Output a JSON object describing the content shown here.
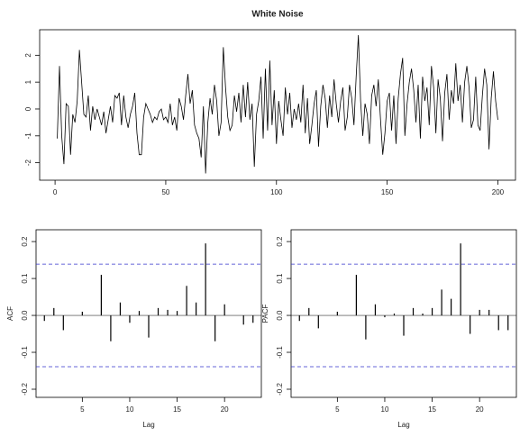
{
  "chart_data": [
    {
      "type": "line",
      "title": "White Noise",
      "color": "#000000",
      "x": [
        1,
        2,
        3,
        4,
        5,
        6,
        7,
        8,
        9,
        10,
        11,
        12,
        13,
        14,
        15,
        16,
        17,
        18,
        19,
        20,
        21,
        22,
        23,
        24,
        25,
        26,
        27,
        28,
        29,
        30,
        31,
        32,
        33,
        34,
        35,
        36,
        37,
        38,
        39,
        40,
        41,
        42,
        43,
        44,
        45,
        46,
        47,
        48,
        49,
        50,
        51,
        52,
        53,
        54,
        55,
        56,
        57,
        58,
        59,
        60,
        61,
        62,
        63,
        64,
        65,
        66,
        67,
        68,
        69,
        70,
        71,
        72,
        73,
        74,
        75,
        76,
        77,
        78,
        79,
        80,
        81,
        82,
        83,
        84,
        85,
        86,
        87,
        88,
        89,
        90,
        91,
        92,
        93,
        94,
        95,
        96,
        97,
        98,
        99,
        100,
        101,
        102,
        103,
        104,
        105,
        106,
        107,
        108,
        109,
        110,
        111,
        112,
        113,
        114,
        115,
        116,
        117,
        118,
        119,
        120,
        121,
        122,
        123,
        124,
        125,
        126,
        127,
        128,
        129,
        130,
        131,
        132,
        133,
        134,
        135,
        136,
        137,
        138,
        139,
        140,
        141,
        142,
        143,
        144,
        145,
        146,
        147,
        148,
        149,
        150,
        151,
        152,
        153,
        154,
        155,
        156,
        157,
        158,
        159,
        160,
        161,
        162,
        163,
        164,
        165,
        166,
        167,
        168,
        169,
        170,
        171,
        172,
        173,
        174,
        175,
        176,
        177,
        178,
        179,
        180,
        181,
        182,
        183,
        184,
        185,
        186,
        187,
        188,
        189,
        190,
        191,
        192,
        193,
        194,
        195,
        196,
        197,
        198,
        199,
        200
      ],
      "values": [
        -1.1,
        1.6,
        -1.0,
        -2.05,
        0.2,
        0.1,
        -1.7,
        -0.2,
        -0.5,
        0.3,
        2.2,
        1.0,
        -0.2,
        -0.3,
        0.5,
        -0.8,
        0.1,
        -0.4,
        0.0,
        -0.3,
        -0.6,
        -0.1,
        -0.9,
        -0.4,
        0.1,
        -0.5,
        0.5,
        0.4,
        0.6,
        -0.6,
        0.5,
        -0.3,
        -0.7,
        -0.2,
        0.1,
        0.6,
        -0.9,
        -1.7,
        -1.7,
        -0.3,
        0.2,
        0.0,
        -0.2,
        -0.5,
        -0.3,
        -0.4,
        -0.1,
        0.0,
        -0.4,
        -0.3,
        -0.5,
        0.2,
        -0.6,
        -0.3,
        -0.8,
        0.4,
        0.1,
        -0.4,
        0.5,
        1.3,
        0.2,
        0.7,
        -0.6,
        -0.9,
        -1.1,
        -1.8,
        0.1,
        -2.4,
        -0.5,
        0.4,
        -0.2,
        0.9,
        0.3,
        -1.0,
        -0.5,
        2.3,
        0.8,
        -0.3,
        -0.8,
        -0.6,
        0.5,
        -0.1,
        0.6,
        -0.5,
        0.9,
        -0.3,
        1.0,
        -0.4,
        0.2,
        -2.15,
        -0.2,
        0.3,
        1.2,
        -1.1,
        1.5,
        -0.8,
        1.8,
        -0.6,
        0.7,
        -1.3,
        0.3,
        -0.4,
        -1.0,
        0.8,
        -0.2,
        0.6,
        -0.7,
        0.0,
        -0.4,
        0.2,
        -0.5,
        0.9,
        -0.9,
        0.4,
        -1.3,
        -0.6,
        0.2,
        0.7,
        -1.4,
        0.1,
        0.9,
        0.4,
        -0.7,
        0.5,
        -0.3,
        1.1,
        0.2,
        -0.5,
        0.3,
        0.8,
        -0.8,
        -0.3,
        0.9,
        0.4,
        -0.6,
        1.2,
        2.75,
        0.3,
        -1.0,
        0.2,
        -0.2,
        -1.3,
        0.5,
        0.9,
        0.1,
        1.1,
        -0.4,
        -1.7,
        -0.9,
        0.3,
        0.6,
        -0.8,
        0.5,
        -1.3,
        0.4,
        1.3,
        1.9,
        -1.0,
        0.2,
        1.0,
        1.5,
        0.7,
        -0.5,
        0.9,
        -1.1,
        1.2,
        0.3,
        0.8,
        -0.6,
        1.6,
        0.8,
        -0.9,
        1.1,
        0.4,
        -1.2,
        0.6,
        1.3,
        -0.4,
        0.7,
        0.2,
        1.7,
        0.3,
        0.9,
        -0.5,
        1.0,
        1.6,
        0.8,
        -0.7,
        -0.4,
        1.2,
        -0.6,
        -0.8,
        0.5,
        1.5,
        0.9,
        -1.5,
        0.4,
        1.4,
        0.3,
        -0.4
      ],
      "xlim": [
        -6.96,
        207.96
      ],
      "ylim": [
        -2.65,
        2.95
      ],
      "xticks": [
        0,
        50,
        100,
        150,
        200
      ],
      "yticks": [
        -2,
        -1,
        0,
        1,
        2
      ]
    },
    {
      "type": "bar",
      "xlabel": "Lag",
      "ylabel": "ACF",
      "color": "#000000",
      "x": [
        1,
        2,
        3,
        4,
        5,
        6,
        7,
        8,
        9,
        10,
        11,
        12,
        13,
        14,
        15,
        16,
        17,
        18,
        19,
        20,
        21,
        22,
        23
      ],
      "values": [
        -0.015,
        0.02,
        -0.04,
        0.0,
        0.01,
        0.0,
        0.11,
        -0.07,
        0.035,
        -0.02,
        0.012,
        -0.06,
        0.02,
        0.015,
        0.012,
        0.08,
        0.035,
        0.195,
        -0.07,
        0.03,
        0.0,
        -0.025,
        -0.02
      ],
      "ci": [
        0.139,
        -0.139
      ],
      "ci_color": "#3333cc",
      "xlim": [
        0.12,
        23.88
      ],
      "ylim": [
        -0.222,
        0.232
      ],
      "xticks": [
        5,
        10,
        15,
        20
      ],
      "yticks": [
        -0.2,
        -0.1,
        {
          "value": 0,
          "label": "0.0"
        },
        0.1,
        0.2
      ]
    },
    {
      "type": "bar",
      "xlabel": "Lag",
      "ylabel": "PACF",
      "color": "#000000",
      "x": [
        1,
        2,
        3,
        4,
        5,
        6,
        7,
        8,
        9,
        10,
        11,
        12,
        13,
        14,
        15,
        16,
        17,
        18,
        19,
        20,
        21,
        22,
        23
      ],
      "values": [
        -0.015,
        0.02,
        -0.035,
        0.0,
        0.01,
        0.0,
        0.11,
        -0.065,
        0.03,
        -0.005,
        0.005,
        -0.055,
        0.02,
        0.005,
        0.02,
        0.07,
        0.045,
        0.195,
        -0.05,
        0.015,
        0.015,
        -0.04,
        -0.04
      ],
      "ci": [
        0.139,
        -0.139
      ],
      "ci_color": "#3333cc",
      "xlim": [
        0.12,
        23.88
      ],
      "ylim": [
        -0.222,
        0.232
      ],
      "xticks": [
        5,
        10,
        15,
        20
      ],
      "yticks": [
        -0.2,
        -0.1,
        {
          "value": 0,
          "label": "0.0"
        },
        0.1,
        0.2
      ]
    }
  ]
}
